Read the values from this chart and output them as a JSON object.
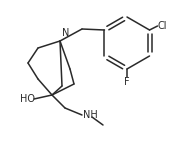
{
  "bg_color": "#ffffff",
  "line_color": "#2a2a2a",
  "line_width": 1.1,
  "font_size": 7.0,
  "figsize": [
    1.93,
    1.41
  ],
  "dpi": 100,
  "xlim": [
    0,
    193
  ],
  "ylim": [
    0,
    141
  ]
}
